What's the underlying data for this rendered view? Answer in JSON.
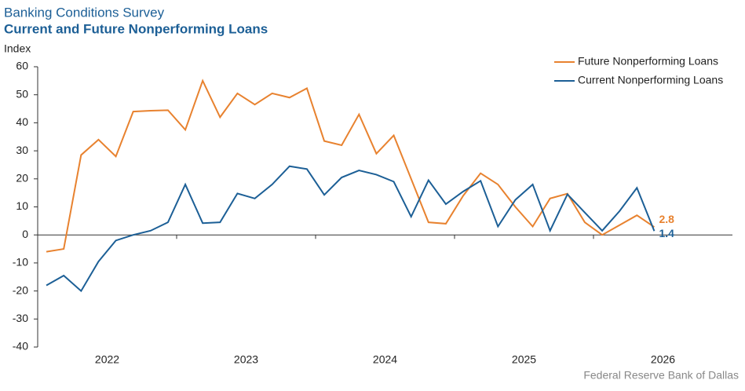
{
  "chart_data": {
    "type": "line",
    "supertitle": "Banking Conditions Survey",
    "title": "Current and Future Nonperforming Loans",
    "y_label": "Index",
    "source": "Federal Reserve Bank of Dallas",
    "x": [
      2022.0625,
      2022.1875,
      2022.3125,
      2022.4375,
      2022.5625,
      2022.6875,
      2022.8125,
      2022.9375,
      2023.0625,
      2023.1875,
      2023.3125,
      2023.4375,
      2023.5625,
      2023.6875,
      2023.8125,
      2023.9375,
      2024.0625,
      2024.1875,
      2024.3125,
      2024.4375,
      2024.5625,
      2024.6875,
      2024.8125,
      2024.9375,
      2025.0625,
      2025.1875,
      2025.3125,
      2025.4375,
      2025.5625,
      2025.6875,
      2025.8125,
      2025.9375,
      2026.0625,
      2026.1875,
      2026.3125,
      2026.4375
    ],
    "series": [
      {
        "name": "Future Nonperforming Loans",
        "color": "#e8822f",
        "values": [
          -6,
          -5,
          28.5,
          34,
          28,
          44,
          44.3,
          44.5,
          37.5,
          55,
          42,
          50.5,
          46.5,
          50.5,
          49,
          52.3,
          33.5,
          32,
          43,
          29,
          35.5,
          20,
          4.5,
          4,
          14,
          22,
          18,
          10,
          3,
          13,
          14.7,
          4.5,
          0,
          3.5,
          7,
          2.8
        ]
      },
      {
        "name": "Current Nonperforming Loans",
        "color": "#1c5f96",
        "values": [
          -18,
          -14.5,
          -20,
          -9.5,
          -2,
          0,
          1.5,
          4.5,
          18,
          4.2,
          4.5,
          14.8,
          13,
          18,
          24.5,
          23.5,
          14.3,
          20.5,
          23,
          21.5,
          19,
          6.5,
          19.5,
          11,
          15.5,
          19.3,
          3,
          12.5,
          18,
          1.5,
          14.5,
          8,
          1.5,
          8.5,
          16.8,
          1.4
        ]
      }
    ],
    "xlim": [
      2022,
      2027
    ],
    "xticks": [
      {
        "value": 2022.5,
        "label": "2022"
      },
      {
        "value": 2023.5,
        "label": "2023"
      },
      {
        "value": 2024.5,
        "label": "2024"
      },
      {
        "value": 2025.5,
        "label": "2025"
      },
      {
        "value": 2026.5,
        "label": "2026"
      }
    ],
    "ylim": [
      -40,
      60
    ],
    "yticks": [
      -40,
      -30,
      -20,
      -10,
      0,
      10,
      20,
      30,
      40,
      50,
      60
    ],
    "legend": "top-right"
  }
}
